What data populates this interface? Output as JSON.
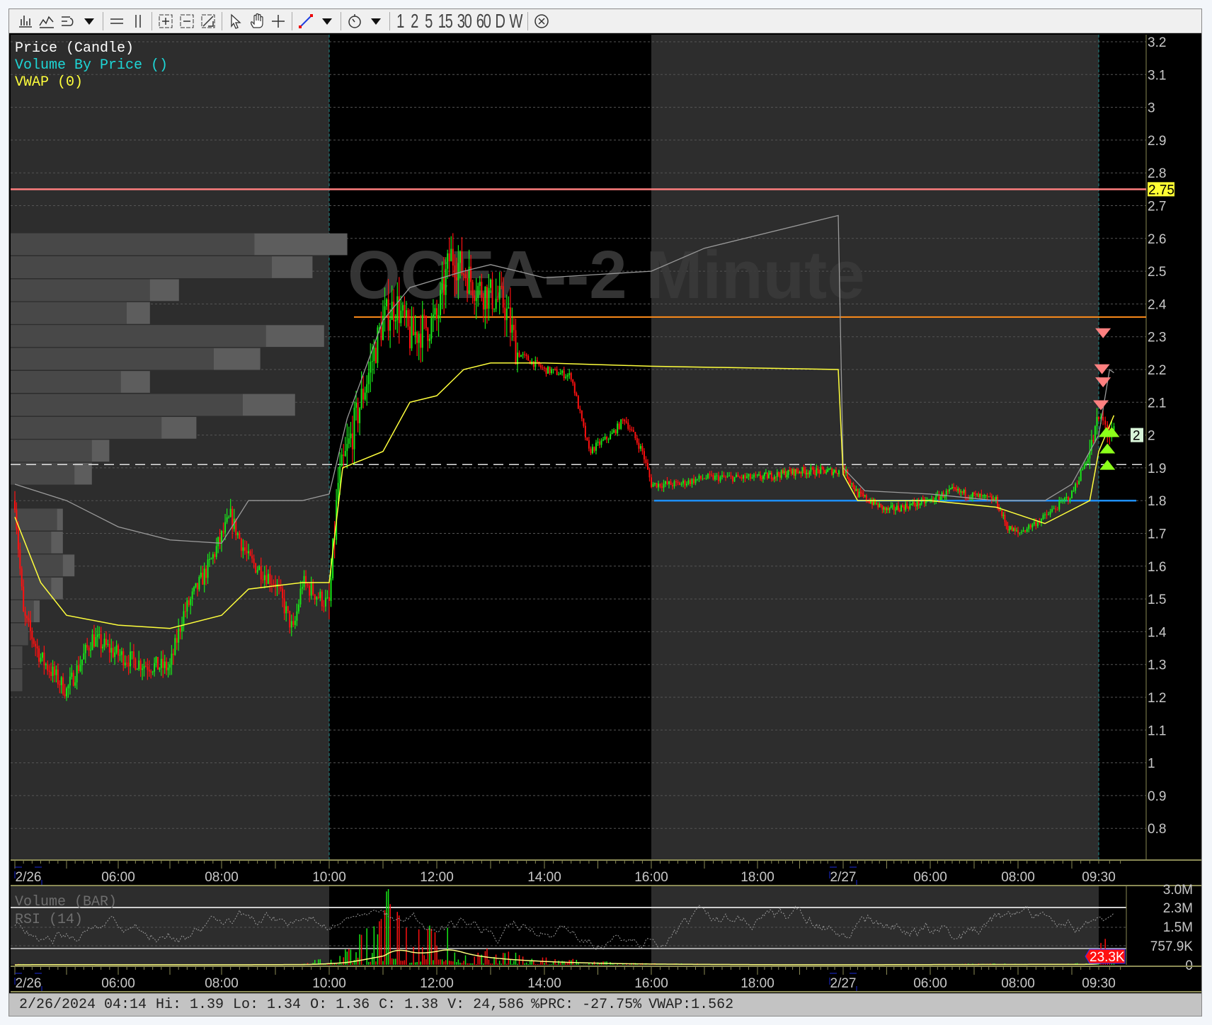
{
  "toolbar": {
    "icons": [
      "bar-chart-icon",
      "line-chart-icon",
      "indicator-icon",
      "dropdown-icon",
      "horizontal-line-icon",
      "vertical-line-icon",
      "zoom-in-icon",
      "zoom-out-icon",
      "zoom-fit-icon",
      "pointer-icon",
      "hand-icon",
      "crosshair-icon",
      "draw-line-icon",
      "dropdown-icon",
      "timer-icon",
      "dropdown-icon",
      "close-circle-icon"
    ],
    "intervals": [
      "1",
      "2",
      "5",
      "15",
      "30",
      "60",
      "D",
      "W"
    ]
  },
  "chart": {
    "watermark": "OCEA--2 Minute",
    "legend": [
      {
        "label": "Price (Candle)",
        "color": "#ffffff"
      },
      {
        "label": "Volume By Price ()",
        "color": "#1ed6d6"
      },
      {
        "label": "VWAP (0)",
        "color": "#ffff3c"
      }
    ],
    "price_axis": [
      "3.2",
      "3.1",
      "3",
      "2.9",
      "2.8",
      "2.7",
      "2.6",
      "2.5",
      "2.4",
      "2.3",
      "2.2",
      "2.1",
      "2",
      "1.9",
      "1.8",
      "1.7",
      "1.6",
      "1.5",
      "1.4",
      "1.3",
      "1.2",
      "1.1",
      "1",
      "0.9",
      "0.8"
    ],
    "price_badge": "2.75",
    "last_badge": "2",
    "levels": {
      "resistance": 2.75,
      "orange": 2.36,
      "dashed": 1.91,
      "support": 1.8
    },
    "colors": {
      "up": "#18e818",
      "down": "#ff1010",
      "vwap": "#ffff3c",
      "band": "#9a9a9a",
      "resistance": "#ff7f7f",
      "orange": "#ff8c1a",
      "support": "#1e8fff",
      "session_ext": "#2d2d2d",
      "session_reg": "#000000"
    },
    "time_axis": [
      "2/26",
      "06:00",
      "08:00",
      "10:00",
      "12:00",
      "14:00",
      "16:00",
      "18:00",
      "2/27",
      "06:00",
      "08:00",
      "09:30"
    ],
    "price_series": [
      [
        "2/26 04:00",
        1.8
      ],
      [
        "2/26 04:10",
        1.45
      ],
      [
        "2/26 04:30",
        1.32
      ],
      [
        "2/26 05:00",
        1.22
      ],
      [
        "2/26 05:30",
        1.38
      ],
      [
        "2/26 06:00",
        1.33
      ],
      [
        "2/26 06:30",
        1.3
      ],
      [
        "2/26 07:00",
        1.29
      ],
      [
        "2/26 07:15",
        1.45
      ],
      [
        "2/26 07:45",
        1.6
      ],
      [
        "2/26 08:10",
        1.75
      ],
      [
        "2/26 08:30",
        1.62
      ],
      [
        "2/26 09:00",
        1.55
      ],
      [
        "2/26 09:20",
        1.4
      ],
      [
        "2/26 09:30",
        1.55
      ],
      [
        "2/26 10:00",
        1.48
      ],
      [
        "2/26 10:10",
        1.85
      ],
      [
        "2/26 10:30",
        2.05
      ],
      [
        "2/26 11:00",
        2.35
      ],
      [
        "2/26 11:15",
        2.4
      ],
      [
        "2/26 11:30",
        2.3
      ],
      [
        "2/26 12:00",
        2.35
      ],
      [
        "2/26 12:15",
        2.55
      ],
      [
        "2/26 12:45",
        2.45
      ],
      [
        "2/26 13:15",
        2.4
      ],
      [
        "2/26 13:30",
        2.25
      ],
      [
        "2/26 14:00",
        2.2
      ],
      [
        "2/26 14:30",
        2.18
      ],
      [
        "2/26 14:50",
        1.95
      ],
      [
        "2/26 15:15",
        2.0
      ],
      [
        "2/26 15:30",
        2.05
      ],
      [
        "2/26 15:50",
        1.95
      ],
      [
        "2/26 16:00",
        1.85
      ],
      [
        "2/26 16:30",
        1.85
      ],
      [
        "2/26 17:00",
        1.87
      ],
      [
        "2/26 18:00",
        1.87
      ],
      [
        "2/26 19:00",
        1.89
      ],
      [
        "2/26 19:50",
        1.89
      ],
      [
        "2/27 04:00",
        1.9
      ],
      [
        "2/27 04:20",
        1.82
      ],
      [
        "2/27 05:00",
        1.77
      ],
      [
        "2/27 06:00",
        1.8
      ],
      [
        "2/27 06:30",
        1.83
      ],
      [
        "2/27 07:30",
        1.8
      ],
      [
        "2/27 07:45",
        1.72
      ],
      [
        "2/27 08:00",
        1.7
      ],
      [
        "2/27 08:30",
        1.75
      ],
      [
        "2/27 09:00",
        1.82
      ],
      [
        "2/27 09:20",
        1.95
      ],
      [
        "2/27 09:30",
        2.05
      ],
      [
        "2/27 09:44",
        2.0
      ]
    ],
    "vwap": [
      [
        "2/26 04:00",
        1.75
      ],
      [
        "2/26 04:30",
        1.55
      ],
      [
        "2/26 05:00",
        1.45
      ],
      [
        "2/26 06:00",
        1.42
      ],
      [
        "2/26 07:00",
        1.41
      ],
      [
        "2/26 08:00",
        1.45
      ],
      [
        "2/26 08:30",
        1.53
      ],
      [
        "2/26 09:30",
        1.55
      ],
      [
        "2/26 10:00",
        1.55
      ],
      [
        "2/26 10:15",
        1.9
      ],
      [
        "2/26 11:00",
        1.95
      ],
      [
        "2/26 11:30",
        2.1
      ],
      [
        "2/26 12:00",
        2.12
      ],
      [
        "2/26 12:30",
        2.2
      ],
      [
        "2/26 13:00",
        2.22
      ],
      [
        "2/26 14:00",
        2.22
      ],
      [
        "2/26 16:00",
        2.21
      ],
      [
        "2/26 19:55",
        2.2
      ],
      [
        "2/27 04:00",
        1.88
      ],
      [
        "2/27 04:20",
        1.8
      ],
      [
        "2/27 06:00",
        1.8
      ],
      [
        "2/27 07:30",
        1.78
      ],
      [
        "2/27 08:30",
        1.73
      ],
      [
        "2/27 09:20",
        1.8
      ],
      [
        "2/27 09:30",
        1.95
      ],
      [
        "2/27 09:44",
        2.06
      ]
    ],
    "band": [
      [
        "2/26 04:00",
        1.85
      ],
      [
        "2/26 05:00",
        1.8
      ],
      [
        "2/26 06:00",
        1.72
      ],
      [
        "2/26 07:00",
        1.68
      ],
      [
        "2/26 08:00",
        1.67
      ],
      [
        "2/26 08:30",
        1.8
      ],
      [
        "2/26 09:30",
        1.8
      ],
      [
        "2/26 10:00",
        1.82
      ],
      [
        "2/26 10:20",
        2.05
      ],
      [
        "2/26 11:00",
        2.35
      ],
      [
        "2/26 11:30",
        2.45
      ],
      [
        "2/26 12:30",
        2.5
      ],
      [
        "2/26 13:00",
        2.52
      ],
      [
        "2/26 14:00",
        2.48
      ],
      [
        "2/26 15:00",
        2.49
      ],
      [
        "2/26 16:00",
        2.5
      ],
      [
        "2/26 17:00",
        2.57
      ],
      [
        "2/26 19:55",
        2.67
      ],
      [
        "2/27 04:00",
        1.9
      ],
      [
        "2/27 04:30",
        1.83
      ],
      [
        "2/27 06:00",
        1.82
      ],
      [
        "2/27 07:30",
        1.8
      ],
      [
        "2/27 08:30",
        1.8
      ],
      [
        "2/27 09:00",
        1.85
      ],
      [
        "2/27 09:30",
        2.0
      ],
      [
        "2/27 09:40",
        2.2
      ],
      [
        "2/27 09:44",
        2.19
      ]
    ],
    "volume_by_price": [
      {
        "price": 2.58,
        "up": 0.42,
        "down": 0.58
      },
      {
        "price": 2.51,
        "up": 0.45,
        "down": 0.52
      },
      {
        "price": 2.44,
        "up": 0.24,
        "down": 0.29
      },
      {
        "price": 2.37,
        "up": 0.2,
        "down": 0.24
      },
      {
        "price": 2.3,
        "up": 0.44,
        "down": 0.54
      },
      {
        "price": 2.23,
        "up": 0.35,
        "down": 0.43
      },
      {
        "price": 2.16,
        "up": 0.19,
        "down": 0.24
      },
      {
        "price": 2.09,
        "up": 0.4,
        "down": 0.49
      },
      {
        "price": 2.02,
        "up": 0.26,
        "down": 0.32
      },
      {
        "price": 1.95,
        "up": 0.14,
        "down": 0.17
      },
      {
        "price": 1.88,
        "up": 0.11,
        "down": 0.14
      },
      {
        "price": 1.74,
        "up": 0.08,
        "down": 0.09
      },
      {
        "price": 1.67,
        "up": 0.07,
        "down": 0.09
      },
      {
        "price": 1.6,
        "up": 0.09,
        "down": 0.11
      },
      {
        "price": 1.53,
        "up": 0.07,
        "down": 0.09
      },
      {
        "price": 1.46,
        "up": 0.04,
        "down": 0.05
      },
      {
        "price": 1.39,
        "up": 0.03,
        "down": 0.03
      },
      {
        "price": 1.32,
        "up": 0.02,
        "down": 0.02
      },
      {
        "price": 1.25,
        "up": 0.02,
        "down": 0.02
      }
    ],
    "signals": {
      "sell": [
        [
          "2/27 09:34",
          2.3
        ],
        [
          "2/27 09:33",
          2.19
        ],
        [
          "2/27 09:34",
          2.15
        ],
        [
          "2/27 09:32",
          2.08
        ]
      ],
      "buy": [
        [
          "2/27 09:37",
          2.02
        ],
        [
          "2/27 09:42",
          2.02
        ],
        [
          "2/27 09:38",
          1.97
        ],
        [
          "2/27 09:38",
          1.92
        ]
      ]
    }
  },
  "volume_pane": {
    "legend": [
      "Volume (BAR)",
      "RSI (14)"
    ],
    "axis": [
      "3.0M",
      "2.3M",
      "1.5M",
      "757.9K",
      "0"
    ],
    "last_badge": "23.3K",
    "time_axis": [
      "2/26",
      "06:00",
      "08:00",
      "10:00",
      "12:00",
      "14:00",
      "16:00",
      "18:00",
      "2/27",
      "06:00",
      "08:00",
      "09:30"
    ],
    "volume_profile_k": [
      [
        "2/26 04:00",
        30
      ],
      [
        "2/26 06:00",
        5
      ],
      [
        "2/26 08:00",
        10
      ],
      [
        "2/26 09:30",
        40
      ],
      [
        "2/26 10:15",
        400
      ],
      [
        "2/26 10:30",
        900
      ],
      [
        "2/26 11:00",
        1500
      ],
      [
        "2/26 11:05",
        3000
      ],
      [
        "2/26 11:30",
        800
      ],
      [
        "2/26 12:05",
        2200
      ],
      [
        "2/26 12:30",
        600
      ],
      [
        "2/26 13:00",
        500
      ],
      [
        "2/26 14:00",
        250
      ],
      [
        "2/26 15:00",
        120
      ],
      [
        "2/26 16:00",
        60
      ],
      [
        "2/26 18:00",
        10
      ],
      [
        "2/26 19:55",
        8
      ],
      [
        "2/27 04:00",
        10
      ],
      [
        "2/27 09:20",
        60
      ],
      [
        "2/27 09:30",
        500
      ],
      [
        "2/27 09:34",
        1000
      ],
      [
        "2/27 09:44",
        200
      ]
    ]
  },
  "status": {
    "datetime": "2/26/2024 04:14",
    "hi": "Hi: 1.39",
    "lo": "Lo: 1.34",
    "open": "O: 1.36",
    "close": "C: 1.38",
    "volume": "V: 24,586",
    "prc": "%PRC: -27.75%",
    "vwap": "VWAP:1.562"
  }
}
